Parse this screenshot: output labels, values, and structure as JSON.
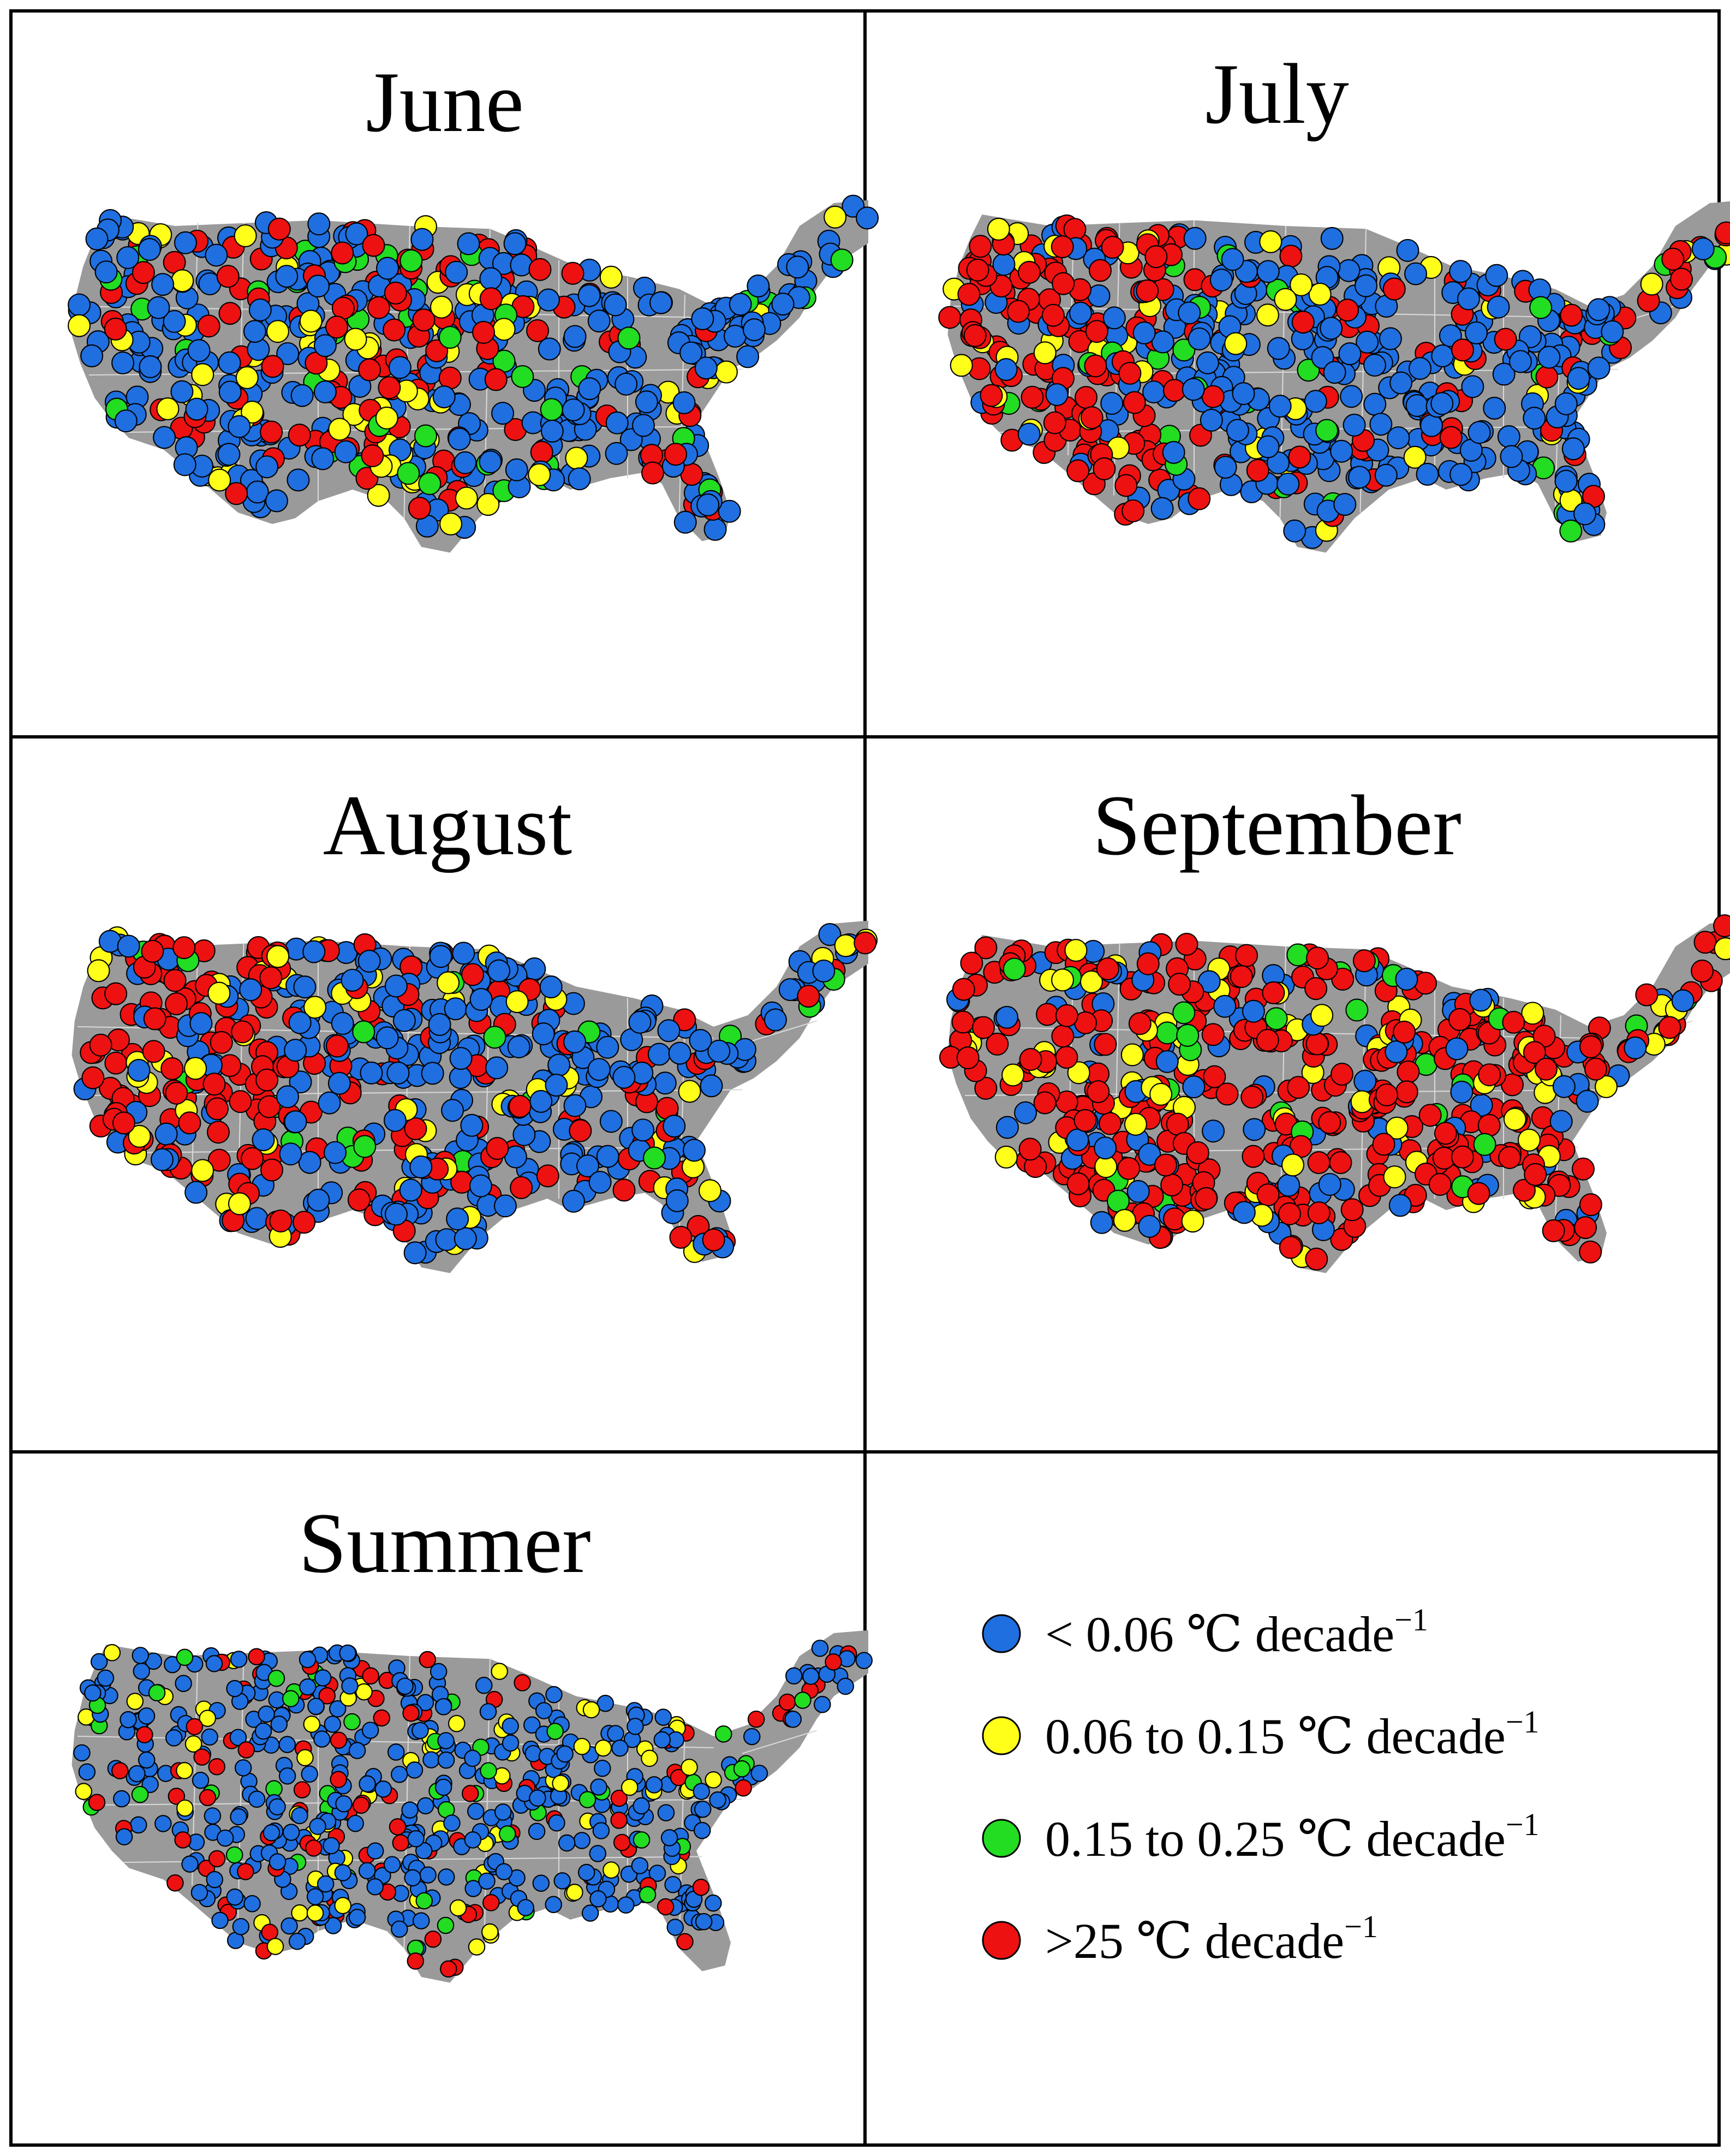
{
  "panels": [
    {
      "id": "june",
      "title": "June",
      "dominant": "mixed"
    },
    {
      "id": "july",
      "title": "July",
      "dominant": "blue"
    },
    {
      "id": "august",
      "title": "August",
      "dominant": "blue"
    },
    {
      "id": "september",
      "title": "September",
      "dominant": "red"
    },
    {
      "id": "summer",
      "title": "Summer",
      "dominant": "mixed"
    }
  ],
  "legend": {
    "items": [
      {
        "key": "lt006",
        "label": "< 0.06 ℃ decade",
        "superscript": "−1",
        "color": "#1f6fe0"
      },
      {
        "key": "006to015",
        "label": "0.06 to 0.15 ℃ decade",
        "superscript": "−1",
        "color": "#ffff1a"
      },
      {
        "key": "015to025",
        "label": "0.15 to 0.25 ℃ decade",
        "superscript": "−1",
        "color": "#22dd22"
      },
      {
        "key": "gt25",
        "label": ">25 ℃ decade",
        "superscript": "−1",
        "color": "#ee1111"
      }
    ]
  },
  "colors": {
    "land": "#9a9a9a",
    "state_border": "#d8d8d8",
    "frame": "#000000",
    "marker_outline": "#000000"
  }
}
